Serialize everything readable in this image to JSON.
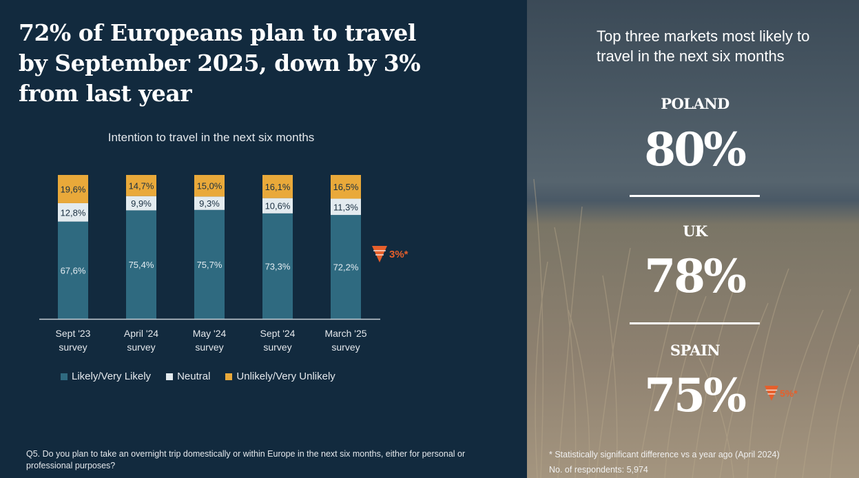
{
  "title": "72% of Europeans plan to travel by September 2025, down by 3% from last year",
  "chart_data": {
    "type": "bar",
    "stacked": true,
    "title": "Intention to travel in the next six months",
    "categories": [
      "Sept '23 survey",
      "April '24 survey",
      "May '24 survey",
      "Sept '24 survey",
      "March '25 survey"
    ],
    "category_lines": [
      [
        "Sept '23",
        "survey"
      ],
      [
        "April '24",
        "survey"
      ],
      [
        "May '24",
        "survey"
      ],
      [
        "Sept '24",
        "survey"
      ],
      [
        "March '25",
        "survey"
      ]
    ],
    "series": [
      {
        "name": "Likely/Very Likely",
        "color": "#2f6a80",
        "values": [
          67.6,
          75.4,
          75.7,
          73.3,
          72.2
        ],
        "labels": [
          "67,6%",
          "75,4%",
          "75,7%",
          "73,3%",
          "72,2%"
        ]
      },
      {
        "name": "Neutral",
        "color": "#e3ebef",
        "values": [
          12.8,
          9.9,
          9.3,
          10.6,
          11.3
        ],
        "labels": [
          "12,8%",
          "9,9%",
          "9,3%",
          "10,6%",
          "11,3%"
        ]
      },
      {
        "name": "Unlikely/Very Unlikely",
        "color": "#e9a93a",
        "values": [
          19.6,
          14.7,
          15.0,
          16.1,
          16.5
        ],
        "labels": [
          "19,6%",
          "14,7%",
          "15,0%",
          "16,1%",
          "16,5%"
        ]
      }
    ],
    "ylim": [
      0,
      100
    ],
    "grid": false,
    "legend_position": "bottom",
    "annotation": "3%*"
  },
  "question": "Q5. Do you plan to take an overnight trip domestically or within Europe in the next six months, either for personal or professional purposes?",
  "right_panel": {
    "heading": "Top three markets most likely to travel in the next six months",
    "markets": [
      {
        "country": "POLAND",
        "value": "80%"
      },
      {
        "country": "UK",
        "value": "78%"
      },
      {
        "country": "SPAIN",
        "value": "75%",
        "change": "5%*"
      }
    ],
    "footnote": "* Statistically significant difference vs a year ago (April 2024)",
    "respondents": "No. of respondents: 5,974"
  },
  "colors": {
    "background": "#122a3e",
    "accent_down": "#e65f2b"
  }
}
